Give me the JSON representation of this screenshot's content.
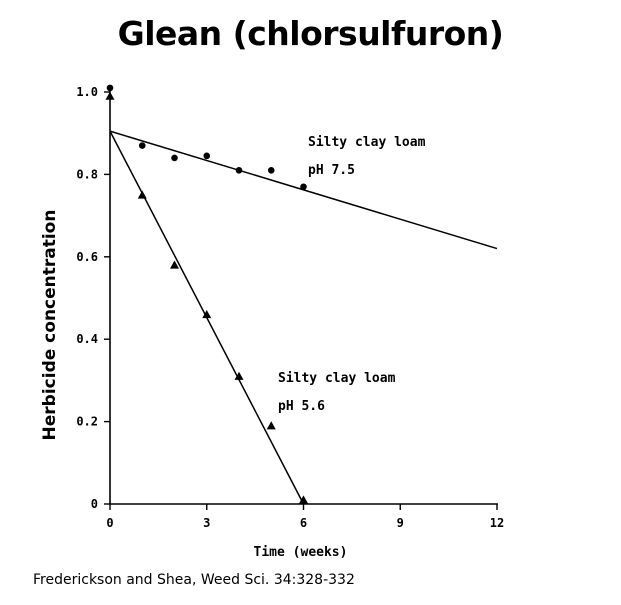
{
  "chart_data": {
    "type": "scatter",
    "title": "Glean (chlorsulfuron)",
    "xlabel": "Time (weeks)",
    "ylabel": "Herbicide concentration",
    "xlim": [
      0,
      12
    ],
    "ylim": [
      0,
      1.0
    ],
    "x_ticks": [
      "0",
      "3",
      "6",
      "9",
      "12"
    ],
    "y_ticks": [
      "0",
      "0.2",
      "0.4",
      "0.6",
      "0.8",
      "1.0"
    ],
    "grid": false,
    "series": [
      {
        "name": "Silty clay loam pH 7.5",
        "marker": "circle",
        "points": [
          [
            0,
            1.01
          ],
          [
            1,
            0.87
          ],
          [
            2,
            0.84
          ],
          [
            3,
            0.845
          ],
          [
            4,
            0.81
          ],
          [
            5,
            0.81
          ],
          [
            6,
            0.77
          ]
        ],
        "fit": [
          [
            0,
            0.905
          ],
          [
            12,
            0.62
          ]
        ]
      },
      {
        "name": "Silty clay loam pH 5.6",
        "marker": "triangle",
        "points": [
          [
            0,
            0.99
          ],
          [
            1,
            0.75
          ],
          [
            2,
            0.58
          ],
          [
            3,
            0.46
          ],
          [
            4,
            0.31
          ],
          [
            5,
            0.19
          ],
          [
            6,
            0.01
          ]
        ],
        "fit": [
          [
            0,
            0.905
          ],
          [
            6,
            0
          ]
        ]
      }
    ],
    "annotations": [
      {
        "line1": "Silty clay loam",
        "line2": "pH 7.5"
      },
      {
        "line1": "Silty clay loam",
        "line2": "pH 5.6"
      }
    ]
  },
  "citation": "Frederickson and Shea, Weed Sci. 34:328-332"
}
